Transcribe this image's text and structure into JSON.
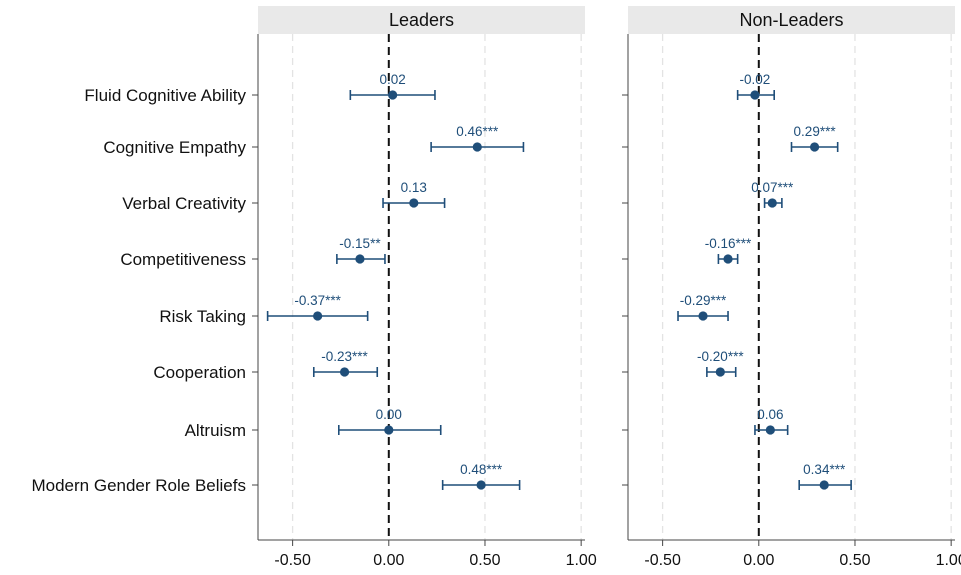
{
  "chart_data": {
    "type": "scatter",
    "style": "coefficient plot with confidence intervals",
    "categories": [
      "Fluid Cognitive Ability",
      "Cognitive Empathy",
      "Verbal Creativity",
      "Competitiveness",
      "Risk Taking",
      "Cooperation",
      "Altruism",
      "Modern Gender Role Beliefs"
    ],
    "xlim": [
      -0.68,
      1.02
    ],
    "xticks": [
      -0.5,
      0,
      0.5,
      1
    ],
    "xtick_labels": [
      "-0.50",
      "0.00",
      "0.50",
      "1.00"
    ],
    "grid": "vertical dashed",
    "reference_line": 0,
    "marker_color": "#1f4e79",
    "panels": [
      {
        "title": "Leaders",
        "points": [
          {
            "estimate": 0.02,
            "ci": [
              -0.2,
              0.24
            ],
            "label": "0.02"
          },
          {
            "estimate": 0.46,
            "ci": [
              0.22,
              0.7
            ],
            "label": "0.46***"
          },
          {
            "estimate": 0.13,
            "ci": [
              -0.03,
              0.29
            ],
            "label": "0.13"
          },
          {
            "estimate": -0.15,
            "ci": [
              -0.27,
              -0.02
            ],
            "label": "-0.15**"
          },
          {
            "estimate": -0.37,
            "ci": [
              -0.63,
              -0.11
            ],
            "label": "-0.37***"
          },
          {
            "estimate": -0.23,
            "ci": [
              -0.39,
              -0.06
            ],
            "label": "-0.23***"
          },
          {
            "estimate": 0.0,
            "ci": [
              -0.26,
              0.27
            ],
            "label": "0.00"
          },
          {
            "estimate": 0.48,
            "ci": [
              0.28,
              0.68
            ],
            "label": "0.48***"
          }
        ]
      },
      {
        "title": "Non-Leaders",
        "points": [
          {
            "estimate": -0.02,
            "ci": [
              -0.11,
              0.08
            ],
            "label": "-0.02"
          },
          {
            "estimate": 0.29,
            "ci": [
              0.17,
              0.41
            ],
            "label": "0.29***"
          },
          {
            "estimate": 0.07,
            "ci": [
              0.03,
              0.12
            ],
            "label": "0.07***"
          },
          {
            "estimate": -0.16,
            "ci": [
              -0.21,
              -0.11
            ],
            "label": "-0.16***"
          },
          {
            "estimate": -0.29,
            "ci": [
              -0.42,
              -0.16
            ],
            "label": "-0.29***"
          },
          {
            "estimate": -0.2,
            "ci": [
              -0.27,
              -0.12
            ],
            "label": "-0.20***"
          },
          {
            "estimate": 0.06,
            "ci": [
              -0.02,
              0.15
            ],
            "label": "0.06"
          },
          {
            "estimate": 0.34,
            "ci": [
              0.21,
              0.48
            ],
            "label": "0.34***"
          }
        ]
      }
    ]
  }
}
